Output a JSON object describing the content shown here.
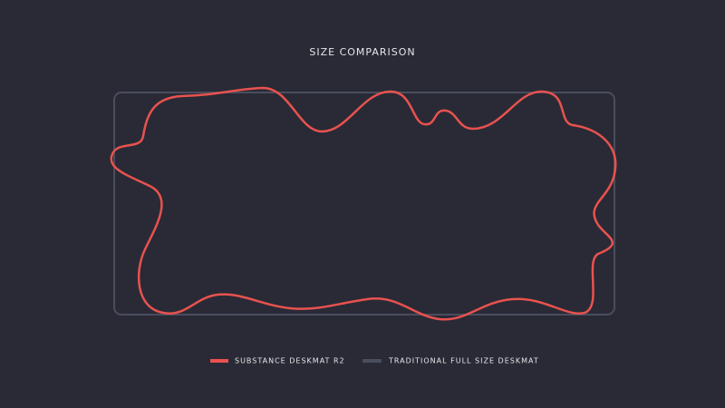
{
  "title": "SIZE COMPARISON",
  "legend": [
    {
      "label": "SUBSTANCE DESKMAT R2"
    },
    {
      "label": "TRADITIONAL FULL SIZE DESKMAT"
    }
  ]
}
